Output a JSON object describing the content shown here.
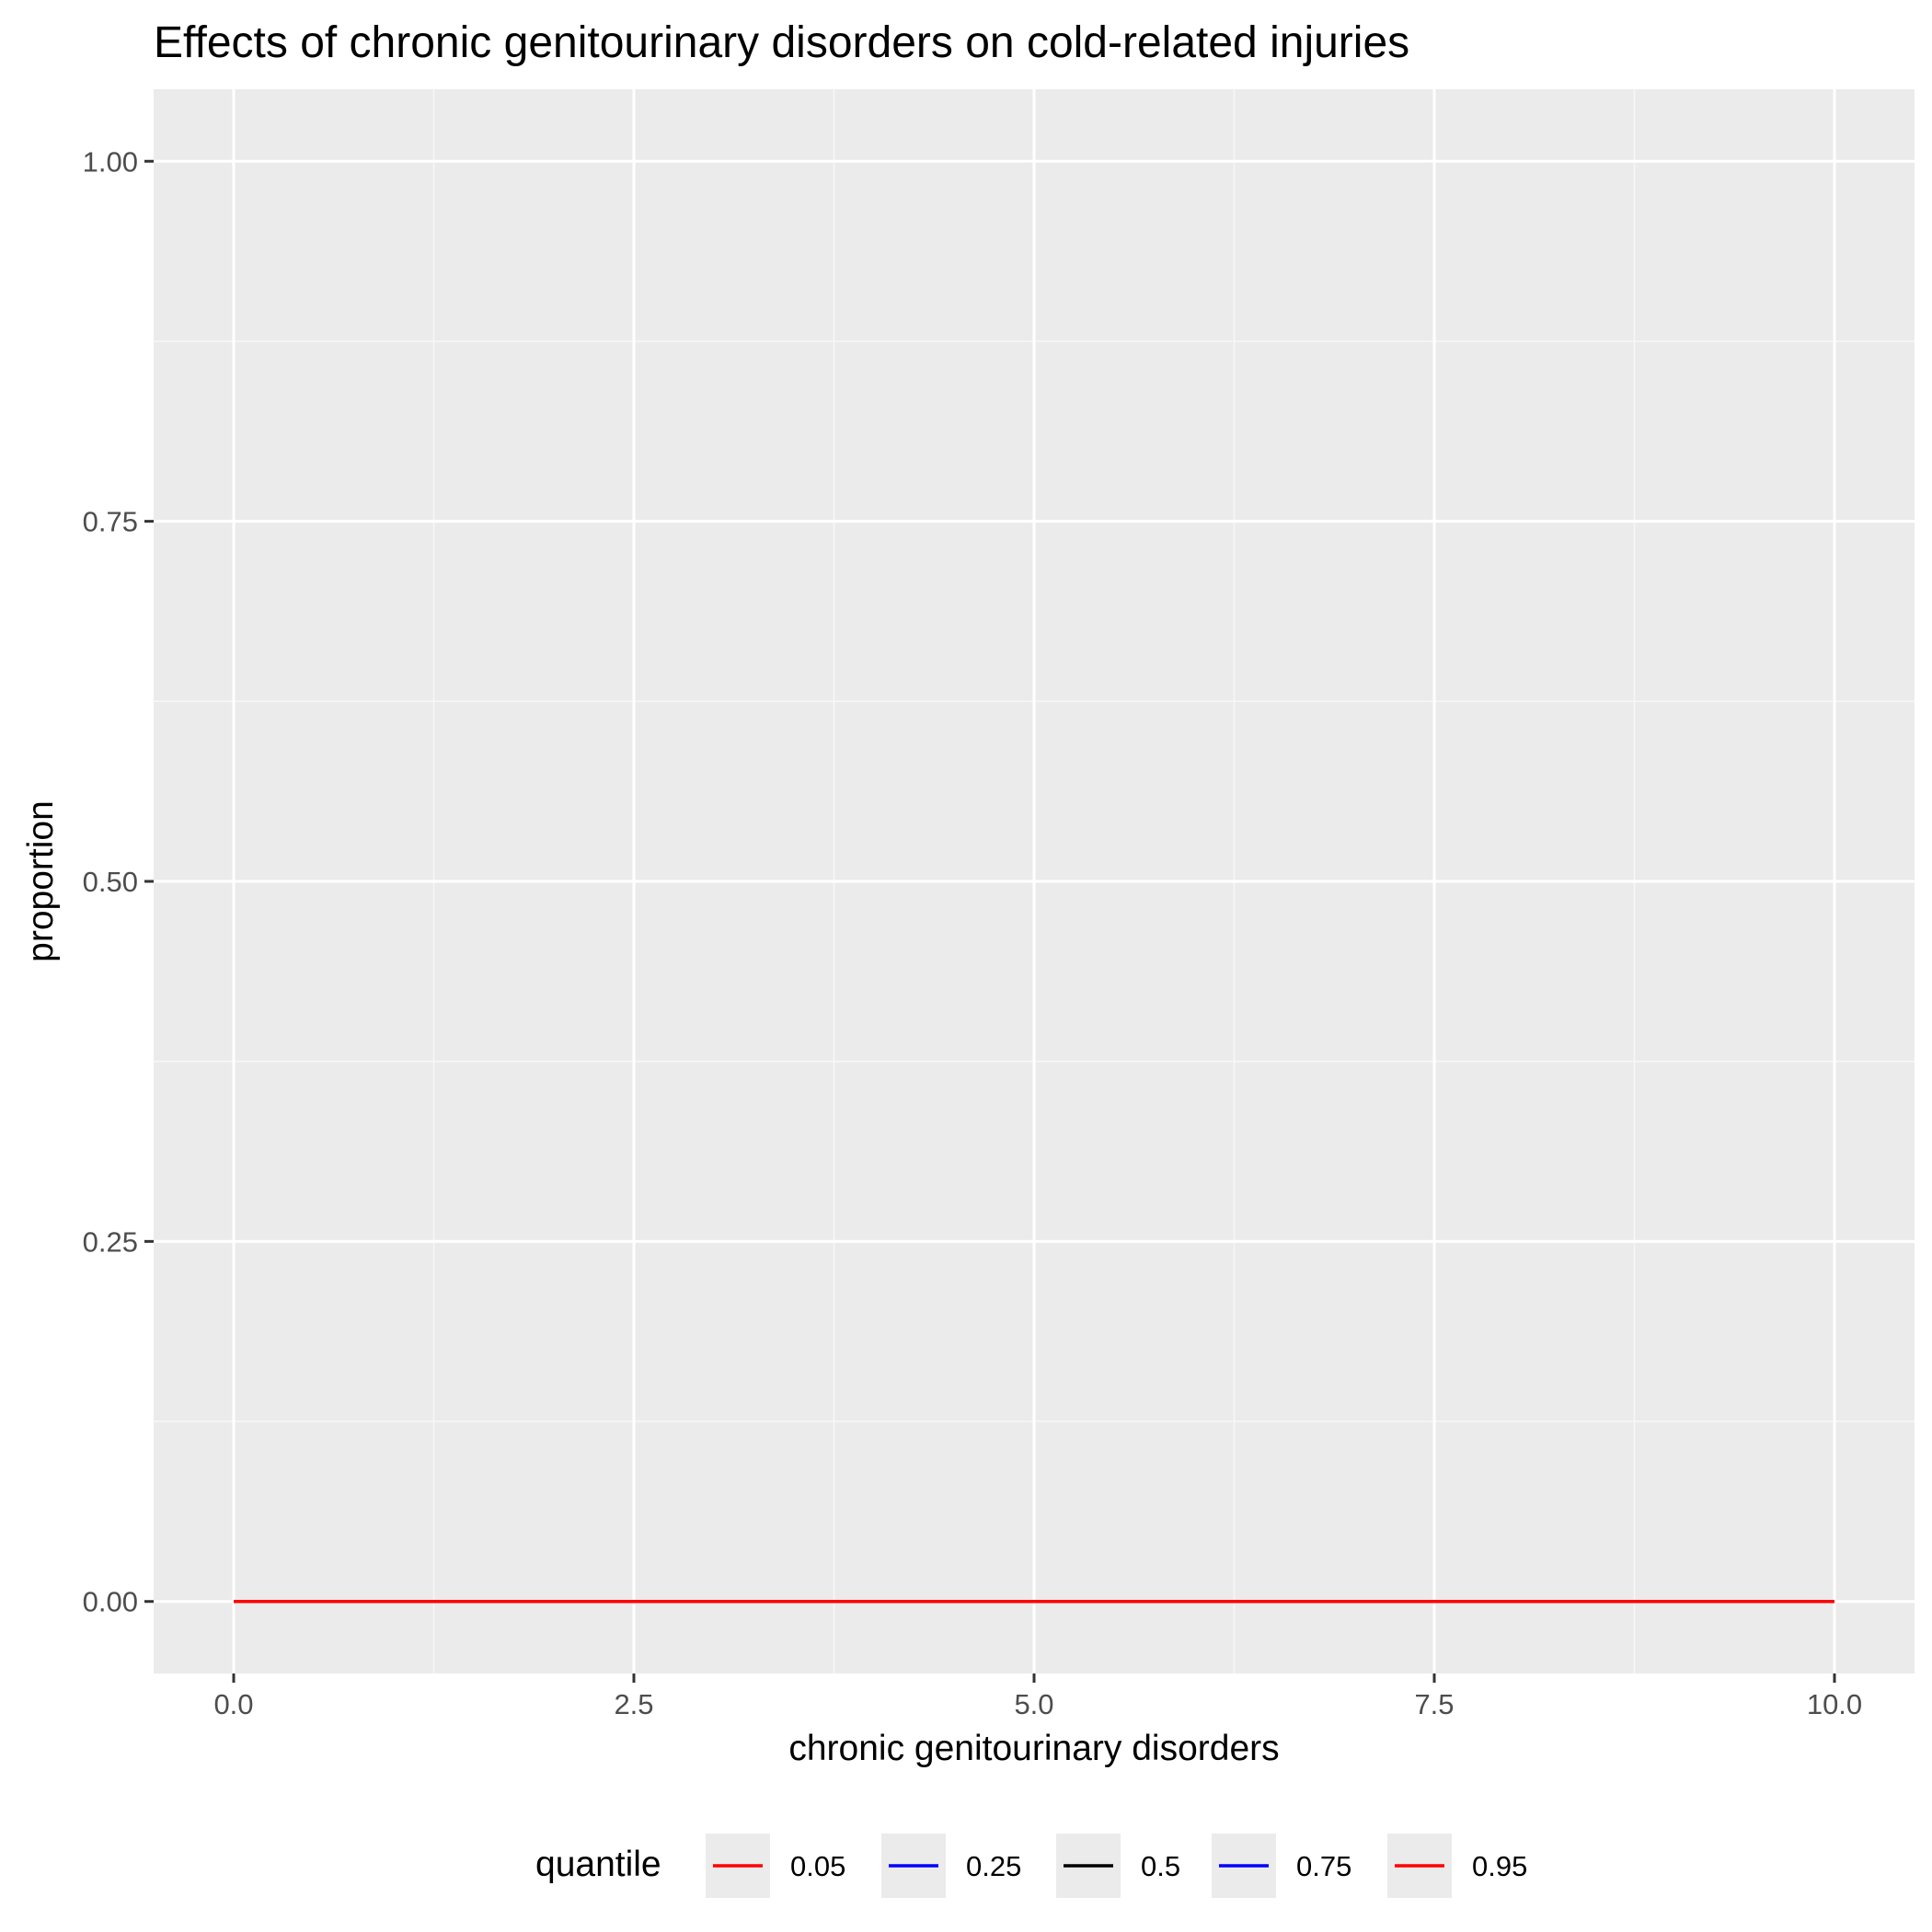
{
  "chart_data": {
    "type": "line",
    "title": "Effects of chronic genitourinary disorders on cold-related injuries",
    "xlabel": "chronic genitourinary disorders",
    "ylabel": "proportion",
    "xlim": [
      -0.5,
      10.5
    ],
    "ylim": [
      -0.05,
      1.05
    ],
    "x_ticks": [
      0,
      2.5,
      5,
      7.5,
      10
    ],
    "x_tick_labels": [
      "0.0",
      "2.5",
      "5.0",
      "7.5",
      "10.0"
    ],
    "y_ticks": [
      0,
      0.25,
      0.5,
      0.75,
      1
    ],
    "y_tick_labels": [
      "0.00",
      "0.25",
      "0.50",
      "0.75",
      "1.00"
    ],
    "grid": true,
    "legend": {
      "title": "quantile",
      "position": "bottom"
    },
    "series": [
      {
        "name": "0.05",
        "color": "#ff0000",
        "x": [
          0,
          10
        ],
        "y": [
          0,
          0
        ]
      },
      {
        "name": "0.25",
        "color": "#0000ff",
        "x": [
          0,
          10
        ],
        "y": [
          0,
          0
        ]
      },
      {
        "name": "0.5",
        "color": "#000000",
        "x": [
          0,
          10
        ],
        "y": [
          0,
          0
        ]
      },
      {
        "name": "0.75",
        "color": "#0000ff",
        "x": [
          0,
          10
        ],
        "y": [
          0,
          0
        ]
      },
      {
        "name": "0.95",
        "color": "#ff0000",
        "x": [
          0,
          10
        ],
        "y": [
          0,
          0
        ]
      }
    ]
  },
  "colors": {
    "panel_background": "#ebebeb",
    "grid_major": "#ffffff",
    "grid_minor": "#f7f7f7",
    "tick_label": "#4d4d4d",
    "tick_mark": "#333333",
    "legend_key_background": "#ebebeb"
  }
}
